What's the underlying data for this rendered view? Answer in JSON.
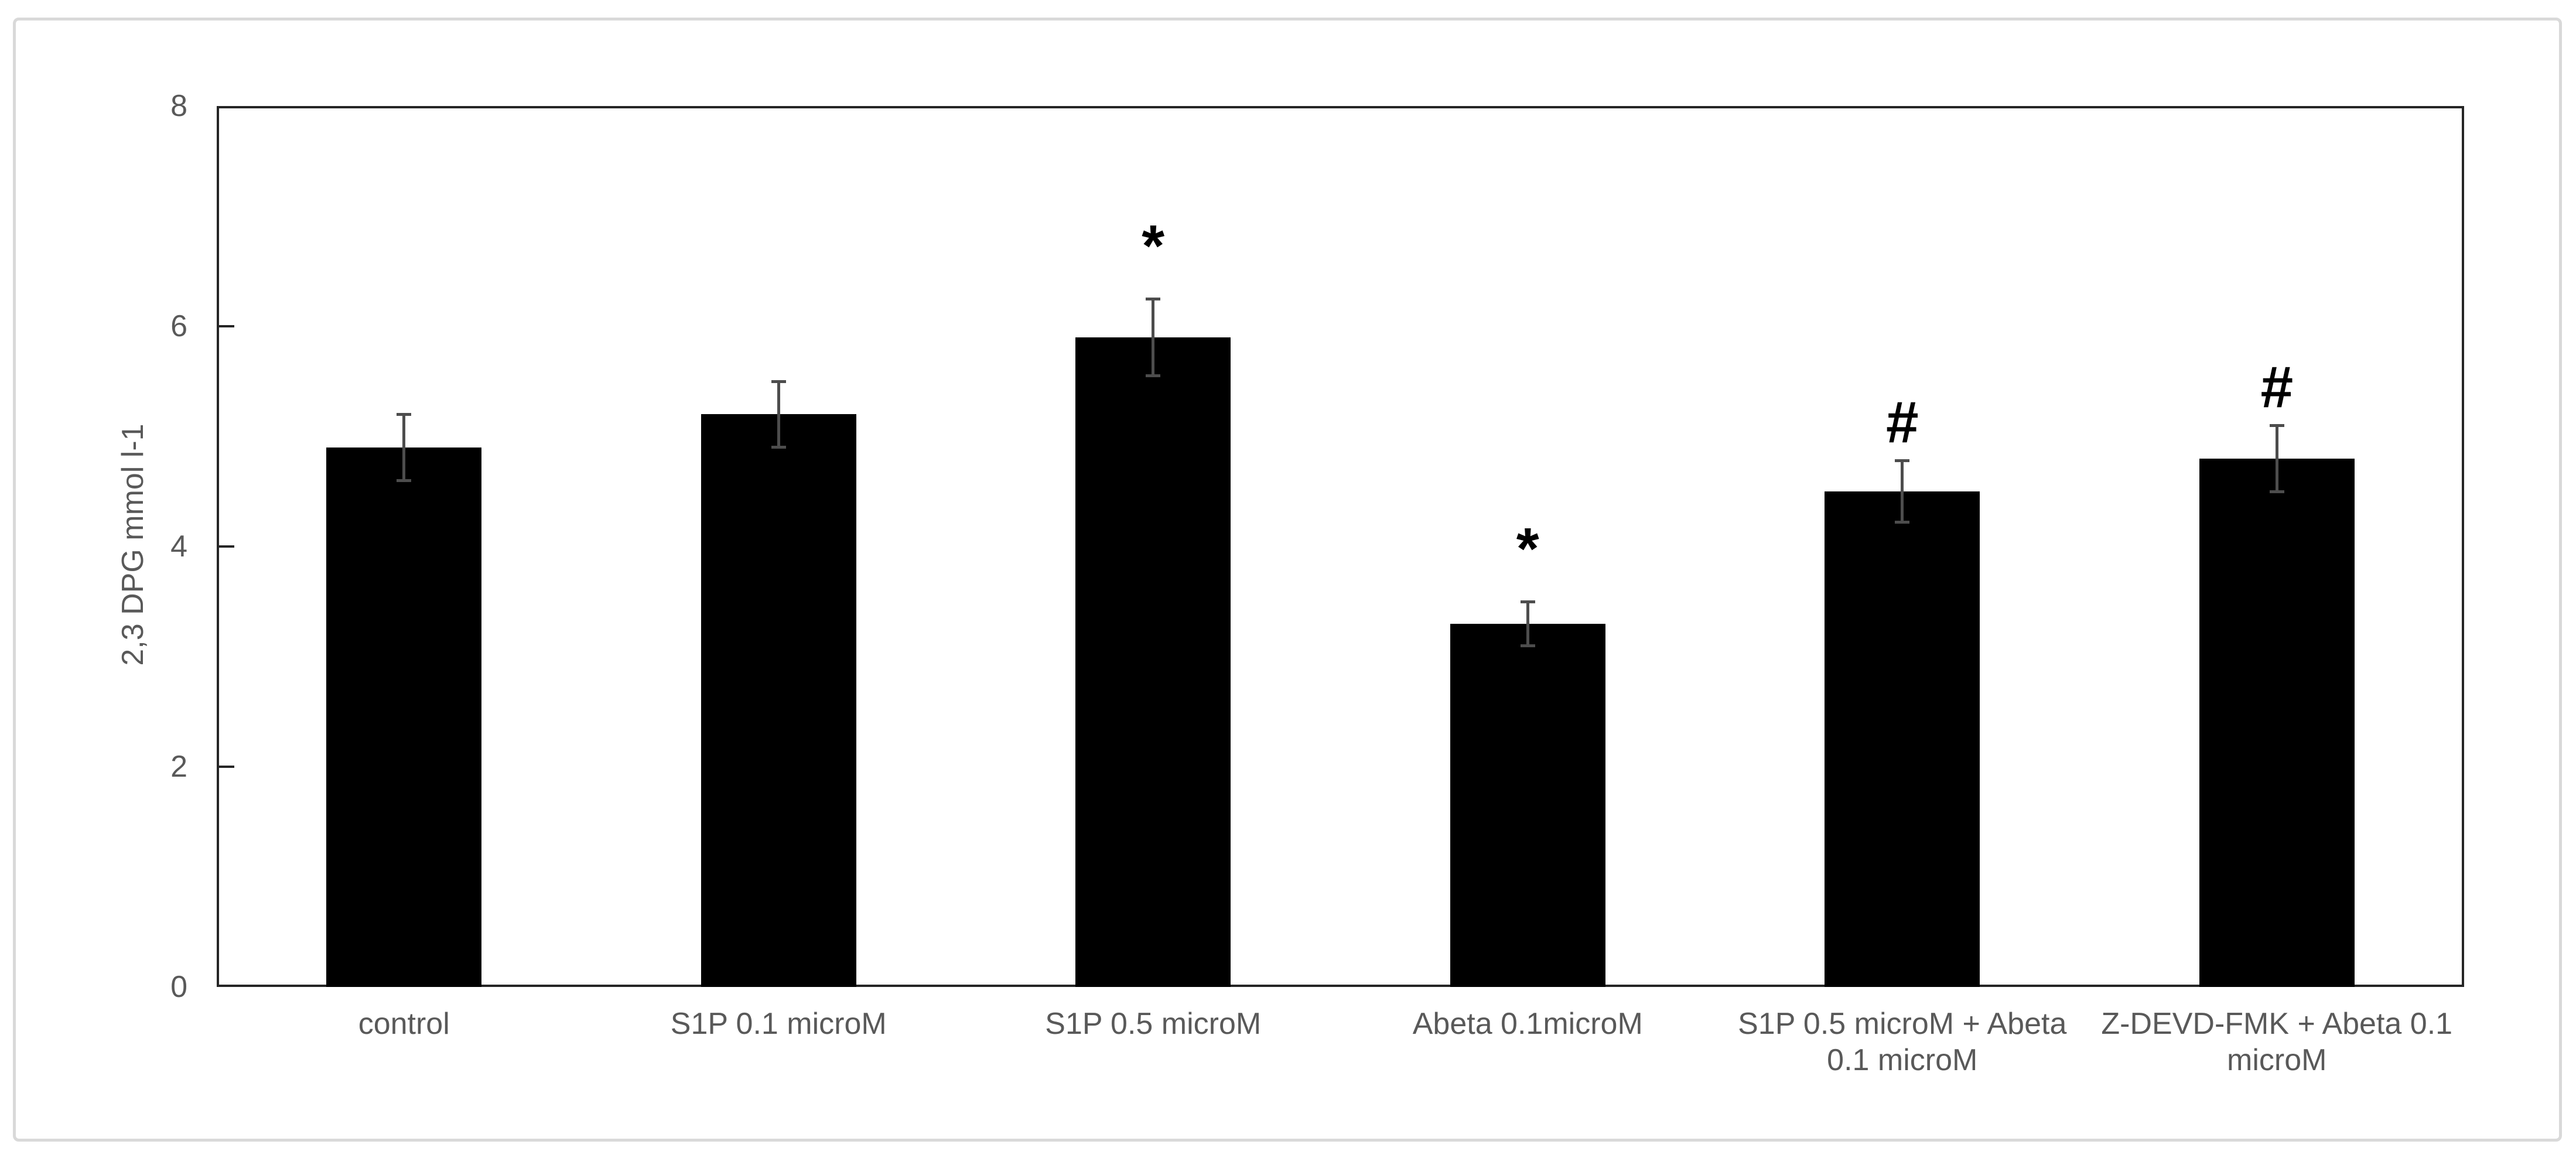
{
  "colors": {
    "background": "#ffffff",
    "frame_border": "#d9d9d9",
    "axis_line": "#262626",
    "text": "#595959",
    "bar_fill": "#000000",
    "error_bar": "#4d4d4d",
    "annotation": "#000000"
  },
  "chart_data": {
    "type": "bar",
    "title": "",
    "xlabel": "",
    "ylabel": "2,3 DPG mmol l-1",
    "ylim": [
      0,
      8
    ],
    "yticks": [
      0,
      2,
      4,
      6,
      8
    ],
    "grid": false,
    "legend": null,
    "categories": [
      "control",
      "S1P 0.1 microM",
      "S1P 0.5 microM",
      "Abeta 0.1microM",
      "S1P 0.5 microM + Abeta 0.1 microM",
      "Z-DEVD-FMK + Abeta 0.1 microM"
    ],
    "values": [
      4.9,
      5.2,
      5.9,
      3.3,
      4.5,
      4.8
    ],
    "errors": [
      0.3,
      0.3,
      0.35,
      0.2,
      0.28,
      0.3
    ],
    "annotations": [
      "",
      "",
      "*",
      "*",
      "#",
      "#"
    ]
  }
}
